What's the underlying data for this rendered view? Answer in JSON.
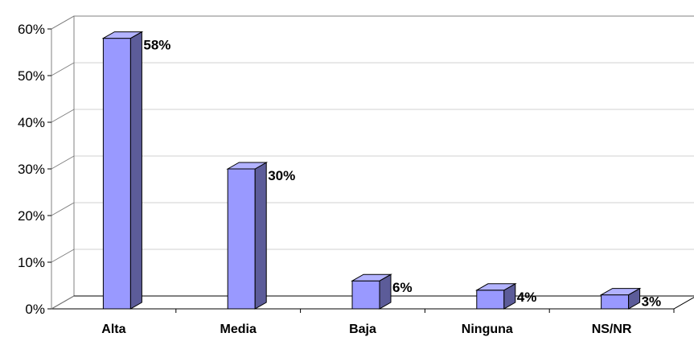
{
  "chart_data": {
    "type": "bar",
    "style": "3d-column",
    "categories": [
      "Alta",
      "Media",
      "Baja",
      "Ninguna",
      "NS/NR"
    ],
    "values": [
      58,
      30,
      6,
      4,
      3
    ],
    "data_labels": [
      "58%",
      "30%",
      "6%",
      "4%",
      "3%"
    ],
    "y_ticks": [
      {
        "value": 0,
        "label": "0%"
      },
      {
        "value": 10,
        "label": "10%"
      },
      {
        "value": 20,
        "label": "20%"
      },
      {
        "value": 30,
        "label": "30%"
      },
      {
        "value": 40,
        "label": "40%"
      },
      {
        "value": 50,
        "label": "50%"
      },
      {
        "value": 60,
        "label": "60%"
      }
    ],
    "ylim": [
      0,
      60
    ],
    "grid": true,
    "legend": "none",
    "colors": {
      "bar_front": "#9999ff",
      "bar_top": "#b3b3ff",
      "bar_side": "#5c5c99",
      "edge": "#000000",
      "grid": "#d0d0d0",
      "wall": "#808080"
    }
  }
}
